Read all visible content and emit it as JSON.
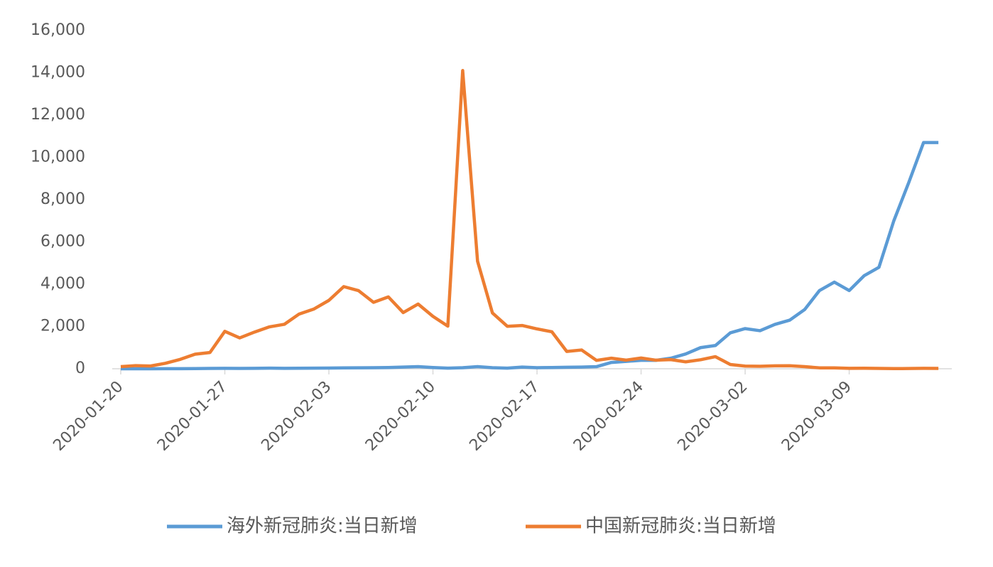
{
  "chart_data": {
    "type": "line",
    "categories": [
      "2020-01-20",
      null,
      null,
      null,
      null,
      null,
      null,
      "2020-01-27",
      null,
      null,
      null,
      null,
      null,
      null,
      "2020-02-03",
      null,
      null,
      null,
      null,
      null,
      null,
      "2020-02-10",
      null,
      null,
      null,
      null,
      null,
      null,
      "2020-02-17",
      null,
      null,
      null,
      null,
      null,
      null,
      "2020-02-24",
      null,
      null,
      null,
      null,
      null,
      null,
      "2020-03-02",
      null,
      null,
      null,
      null,
      null,
      null,
      "2020-03-09",
      null,
      null,
      null,
      null,
      null,
      null
    ],
    "series": [
      {
        "name": "海外新冠肺炎:当日新增",
        "color": "#5b9bd5",
        "values": [
          0,
          1,
          2,
          3,
          5,
          10,
          15,
          20,
          15,
          20,
          30,
          20,
          25,
          30,
          35,
          40,
          45,
          50,
          60,
          80,
          100,
          60,
          30,
          50,
          100,
          50,
          30,
          80,
          50,
          60,
          70,
          80,
          100,
          300,
          350,
          400,
          400,
          500,
          700,
          1000,
          1100,
          1700,
          1900,
          1800,
          2100,
          2300,
          2800,
          3700,
          4100,
          3700,
          4400,
          4800,
          7000,
          8800,
          10700,
          10700
        ]
      },
      {
        "name": "中国新冠肺炎:当日新增",
        "color": "#ed7d31",
        "values": [
          100,
          149,
          131,
          259,
          444,
          688,
          769,
          1771,
          1459,
          1737,
          1982,
          2102,
          2590,
          2829,
          3235,
          3887,
          3694,
          3143,
          3399,
          2656,
          3062,
          2478,
          2015,
          14108,
          5090,
          2641,
          2009,
          2048,
          1886,
          1749,
          820,
          889,
          397,
          500,
          409,
          508,
          406,
          433,
          327,
          427,
          573,
          202,
          125,
          119,
          139,
          143,
          99,
          44,
          40,
          19,
          24,
          15,
          8,
          11,
          20,
          16
        ]
      }
    ],
    "ylim": [
      0,
      16000
    ],
    "yticks": [
      0,
      {
        "value": 2000,
        "label": "2,000"
      },
      {
        "value": 4000,
        "label": "4,000"
      },
      {
        "value": 6000,
        "label": "6,000"
      },
      {
        "value": 8000,
        "label": "8,000"
      },
      {
        "value": 10000,
        "label": "10,000"
      },
      {
        "value": 12000,
        "label": "12,000"
      },
      {
        "value": 14000,
        "label": "14,000"
      },
      {
        "value": 16000,
        "label": "16,000"
      }
    ],
    "legend": "bottom"
  }
}
